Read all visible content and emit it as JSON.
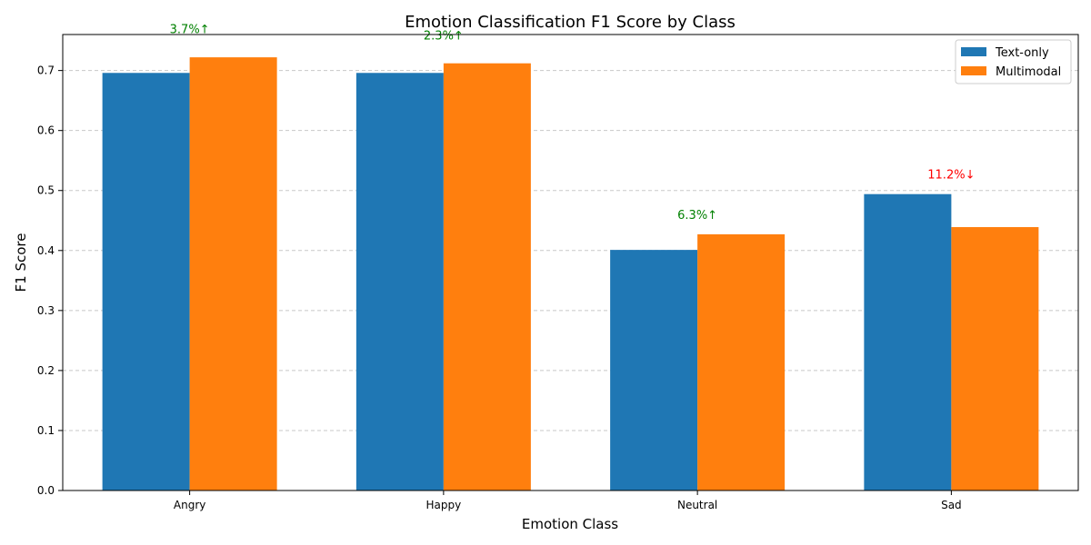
{
  "chart_data": {
    "type": "bar",
    "title": "Emotion Classification F1 Score by Class",
    "xlabel": "Emotion Class",
    "ylabel": "F1 Score",
    "categories": [
      "Angry",
      "Happy",
      "Neutral",
      "Sad"
    ],
    "series": [
      {
        "name": "Text-only",
        "color": "#1f77b4",
        "values": [
          0.696,
          0.696,
          0.401,
          0.494
        ]
      },
      {
        "name": "Multimodal",
        "color": "#ff7f0e",
        "values": [
          0.722,
          0.712,
          0.427,
          0.439
        ]
      }
    ],
    "ylim": [
      0,
      0.76
    ],
    "yticks": [
      "0.0",
      "0.1",
      "0.2",
      "0.3",
      "0.4",
      "0.5",
      "0.6",
      "0.7"
    ],
    "grid": "y-dashed",
    "legend": "top-right",
    "annotations": [
      {
        "category": "Angry",
        "text": "3.7%↑",
        "color": "#008000",
        "y": 0.762
      },
      {
        "category": "Happy",
        "text": "2.3%↑",
        "color": "#008000",
        "y": 0.752
      },
      {
        "category": "Neutral",
        "text": "6.3%↑",
        "color": "#008000",
        "y": 0.453
      },
      {
        "category": "Sad",
        "text": "11.2%↓",
        "color": "#ff0000",
        "y": 0.52
      }
    ]
  }
}
